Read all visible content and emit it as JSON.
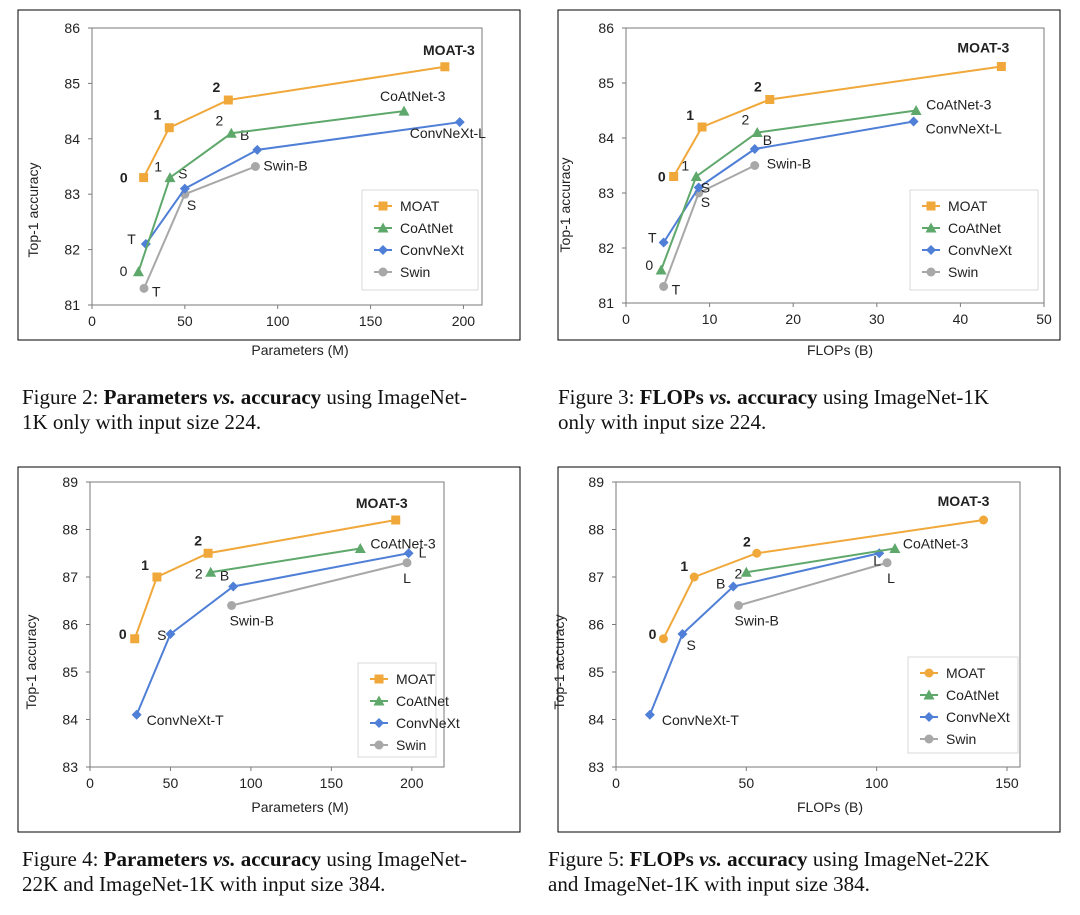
{
  "colors": {
    "MOAT": "#f0a83a",
    "CoAtNet": "#5fa86b",
    "ConvNeXt": "#4f7fd6",
    "Swin": "#a8a8a8",
    "axis": "#7a7a7a",
    "frame": "#000000"
  },
  "captions": [
    {
      "fig": "Figure 2:",
      "bold1": "Parameters",
      "vs": "vs.",
      "bold2": "accuracy",
      "rest1": "using ImageNet-",
      "rest2": "1K only with input size 224."
    },
    {
      "fig": "Figure 3:",
      "bold1": "FLOPs",
      "vs": "vs.",
      "bold2": "accuracy",
      "rest1": "using ImageNet-1K",
      "rest2": "only with input size 224."
    },
    {
      "fig": "Figure 4:",
      "bold1": "Parameters",
      "vs": "vs.",
      "bold2": "accuracy",
      "rest1": "using ImageNet-",
      "rest2": "22K and ImageNet-1K with input size 384."
    },
    {
      "fig": "Figure 5:",
      "bold1": "FLOPs",
      "vs": "vs.",
      "bold2": "accuracy",
      "rest1": "using ImageNet-22K",
      "rest2": "and ImageNet-1K with input size 384."
    }
  ],
  "chart_data": [
    {
      "type": "line",
      "xlabel": "Parameters (M)",
      "ylabel": "Top-1 accuracy",
      "xlim": [
        0,
        210
      ],
      "ylim": [
        81,
        86
      ],
      "xticks": [
        0,
        50,
        100,
        150,
        200
      ],
      "yticks": [
        81,
        82,
        83,
        84,
        85,
        86
      ],
      "legend_position": "bottom-right",
      "legend_marker": "square",
      "series": [
        {
          "name": "MOAT",
          "marker": "square",
          "points": [
            {
              "x": 27.8,
              "y": 83.3,
              "label": "0",
              "bold": true
            },
            {
              "x": 41.6,
              "y": 84.2,
              "label": "1",
              "bold": true
            },
            {
              "x": 73.4,
              "y": 84.7,
              "label": "2",
              "bold": true
            },
            {
              "x": 190,
              "y": 85.3,
              "label": "MOAT-3",
              "bold": true
            }
          ]
        },
        {
          "name": "CoAtNet",
          "marker": "triangle",
          "points": [
            {
              "x": 25,
              "y": 81.6,
              "label": "0"
            },
            {
              "x": 42,
              "y": 83.3,
              "label": "1"
            },
            {
              "x": 75,
              "y": 84.1,
              "label": "2"
            },
            {
              "x": 168,
              "y": 84.5,
              "label": "CoAtNet-3"
            }
          ]
        },
        {
          "name": "ConvNeXt",
          "marker": "diamond",
          "points": [
            {
              "x": 29,
              "y": 82.1,
              "label": "T"
            },
            {
              "x": 50,
              "y": 83.1,
              "label": "S"
            },
            {
              "x": 89,
              "y": 83.8,
              "label": "B"
            },
            {
              "x": 198,
              "y": 84.3,
              "label": "ConvNeXt-L"
            }
          ]
        },
        {
          "name": "Swin",
          "marker": "circle",
          "points": [
            {
              "x": 28,
              "y": 81.3,
              "label": "T"
            },
            {
              "x": 50,
              "y": 83.0,
              "label": "S"
            },
            {
              "x": 88,
              "y": 83.5,
              "label": "Swin-B"
            }
          ]
        }
      ]
    },
    {
      "type": "line",
      "xlabel": "FLOPs (B)",
      "ylabel": "Top-1 accuracy",
      "xlim": [
        0,
        50
      ],
      "ylim": [
        81,
        86
      ],
      "xticks": [
        0,
        10,
        20,
        30,
        40,
        50
      ],
      "yticks": [
        81,
        82,
        83,
        84,
        85,
        86
      ],
      "legend_position": "bottom-right",
      "legend_marker": "square",
      "series": [
        {
          "name": "MOAT",
          "marker": "square",
          "points": [
            {
              "x": 5.7,
              "y": 83.3,
              "label": "0",
              "bold": true
            },
            {
              "x": 9.1,
              "y": 84.2,
              "label": "1",
              "bold": true
            },
            {
              "x": 17.2,
              "y": 84.7,
              "label": "2",
              "bold": true
            },
            {
              "x": 44.9,
              "y": 85.3,
              "label": "MOAT-3",
              "bold": true
            }
          ]
        },
        {
          "name": "CoAtNet",
          "marker": "triangle",
          "points": [
            {
              "x": 4.2,
              "y": 81.6,
              "label": "0"
            },
            {
              "x": 8.4,
              "y": 83.3,
              "label": "1"
            },
            {
              "x": 15.7,
              "y": 84.1,
              "label": "2"
            },
            {
              "x": 34.7,
              "y": 84.5,
              "label": "CoAtNet-3"
            }
          ]
        },
        {
          "name": "ConvNeXt",
          "marker": "diamond",
          "points": [
            {
              "x": 4.5,
              "y": 82.1,
              "label": "T"
            },
            {
              "x": 8.7,
              "y": 83.1,
              "label": "S"
            },
            {
              "x": 15.4,
              "y": 83.8,
              "label": "B"
            },
            {
              "x": 34.4,
              "y": 84.3,
              "label": "ConvNeXt-L"
            }
          ]
        },
        {
          "name": "Swin",
          "marker": "circle",
          "points": [
            {
              "x": 4.5,
              "y": 81.3,
              "label": "T"
            },
            {
              "x": 8.7,
              "y": 83.0,
              "label": "S"
            },
            {
              "x": 15.4,
              "y": 83.5,
              "label": "Swin-B"
            }
          ]
        }
      ]
    },
    {
      "type": "line",
      "xlabel": "Parameters (M)",
      "ylabel": "Top-1 accuracy",
      "xlim": [
        0,
        220
      ],
      "ylim": [
        83,
        89
      ],
      "xticks": [
        0,
        50,
        100,
        150,
        200
      ],
      "yticks": [
        83,
        84,
        85,
        86,
        87,
        88,
        89
      ],
      "legend_position": "bottom-right",
      "legend_marker": "square",
      "series": [
        {
          "name": "MOAT",
          "marker": "square",
          "points": [
            {
              "x": 27.8,
              "y": 85.7,
              "label": "0",
              "bold": true
            },
            {
              "x": 41.6,
              "y": 87.0,
              "label": "1",
              "bold": true
            },
            {
              "x": 73.4,
              "y": 87.5,
              "label": "2",
              "bold": true
            },
            {
              "x": 190,
              "y": 88.2,
              "label": "MOAT-3",
              "bold": true
            }
          ]
        },
        {
          "name": "CoAtNet",
          "marker": "triangle",
          "points": [
            {
              "x": 75,
              "y": 87.1,
              "label": "2"
            },
            {
              "x": 168,
              "y": 87.6,
              "label": "CoAtNet-3"
            }
          ]
        },
        {
          "name": "ConvNeXt",
          "marker": "diamond",
          "points": [
            {
              "x": 29,
              "y": 84.1,
              "label": "ConvNeXt-T"
            },
            {
              "x": 50,
              "y": 85.8,
              "label": "S"
            },
            {
              "x": 89,
              "y": 86.8,
              "label": "B"
            },
            {
              "x": 198,
              "y": 87.5,
              "label": "L"
            }
          ]
        },
        {
          "name": "Swin",
          "marker": "circle",
          "points": [
            {
              "x": 88,
              "y": 86.4,
              "label": "Swin-B"
            },
            {
              "x": 197,
              "y": 87.3,
              "label": "L"
            }
          ]
        }
      ]
    },
    {
      "type": "line",
      "xlabel": "FLOPs (B)",
      "ylabel": "Top-1 accuracy",
      "xlim": [
        0,
        155
      ],
      "ylim": [
        83,
        89
      ],
      "xticks": [
        0,
        50,
        100,
        150
      ],
      "yticks": [
        83,
        84,
        85,
        86,
        87,
        88,
        89
      ],
      "legend_position": "bottom-right",
      "legend_marker": "circle",
      "series": [
        {
          "name": "MOAT",
          "marker": "circle",
          "points": [
            {
              "x": 18.2,
              "y": 85.7,
              "label": "0",
              "bold": true
            },
            {
              "x": 30,
              "y": 87.0,
              "label": "1",
              "bold": true
            },
            {
              "x": 54,
              "y": 87.5,
              "label": "2",
              "bold": true
            },
            {
              "x": 141,
              "y": 88.2,
              "label": "MOAT-3",
              "bold": true
            }
          ]
        },
        {
          "name": "CoAtNet",
          "marker": "triangle",
          "points": [
            {
              "x": 50,
              "y": 87.1,
              "label": "2"
            },
            {
              "x": 107,
              "y": 87.6,
              "label": "CoAtNet-3"
            }
          ]
        },
        {
          "name": "ConvNeXt",
          "marker": "diamond",
          "points": [
            {
              "x": 13,
              "y": 84.1,
              "label": "ConvNeXt-T"
            },
            {
              "x": 25.5,
              "y": 85.8,
              "label": "S"
            },
            {
              "x": 45,
              "y": 86.8,
              "label": "B"
            },
            {
              "x": 101,
              "y": 87.5,
              "label": "L"
            }
          ]
        },
        {
          "name": "Swin",
          "marker": "circle",
          "points": [
            {
              "x": 47,
              "y": 86.4,
              "label": "Swin-B"
            },
            {
              "x": 104,
              "y": 87.3,
              "label": "L"
            }
          ]
        }
      ]
    }
  ]
}
